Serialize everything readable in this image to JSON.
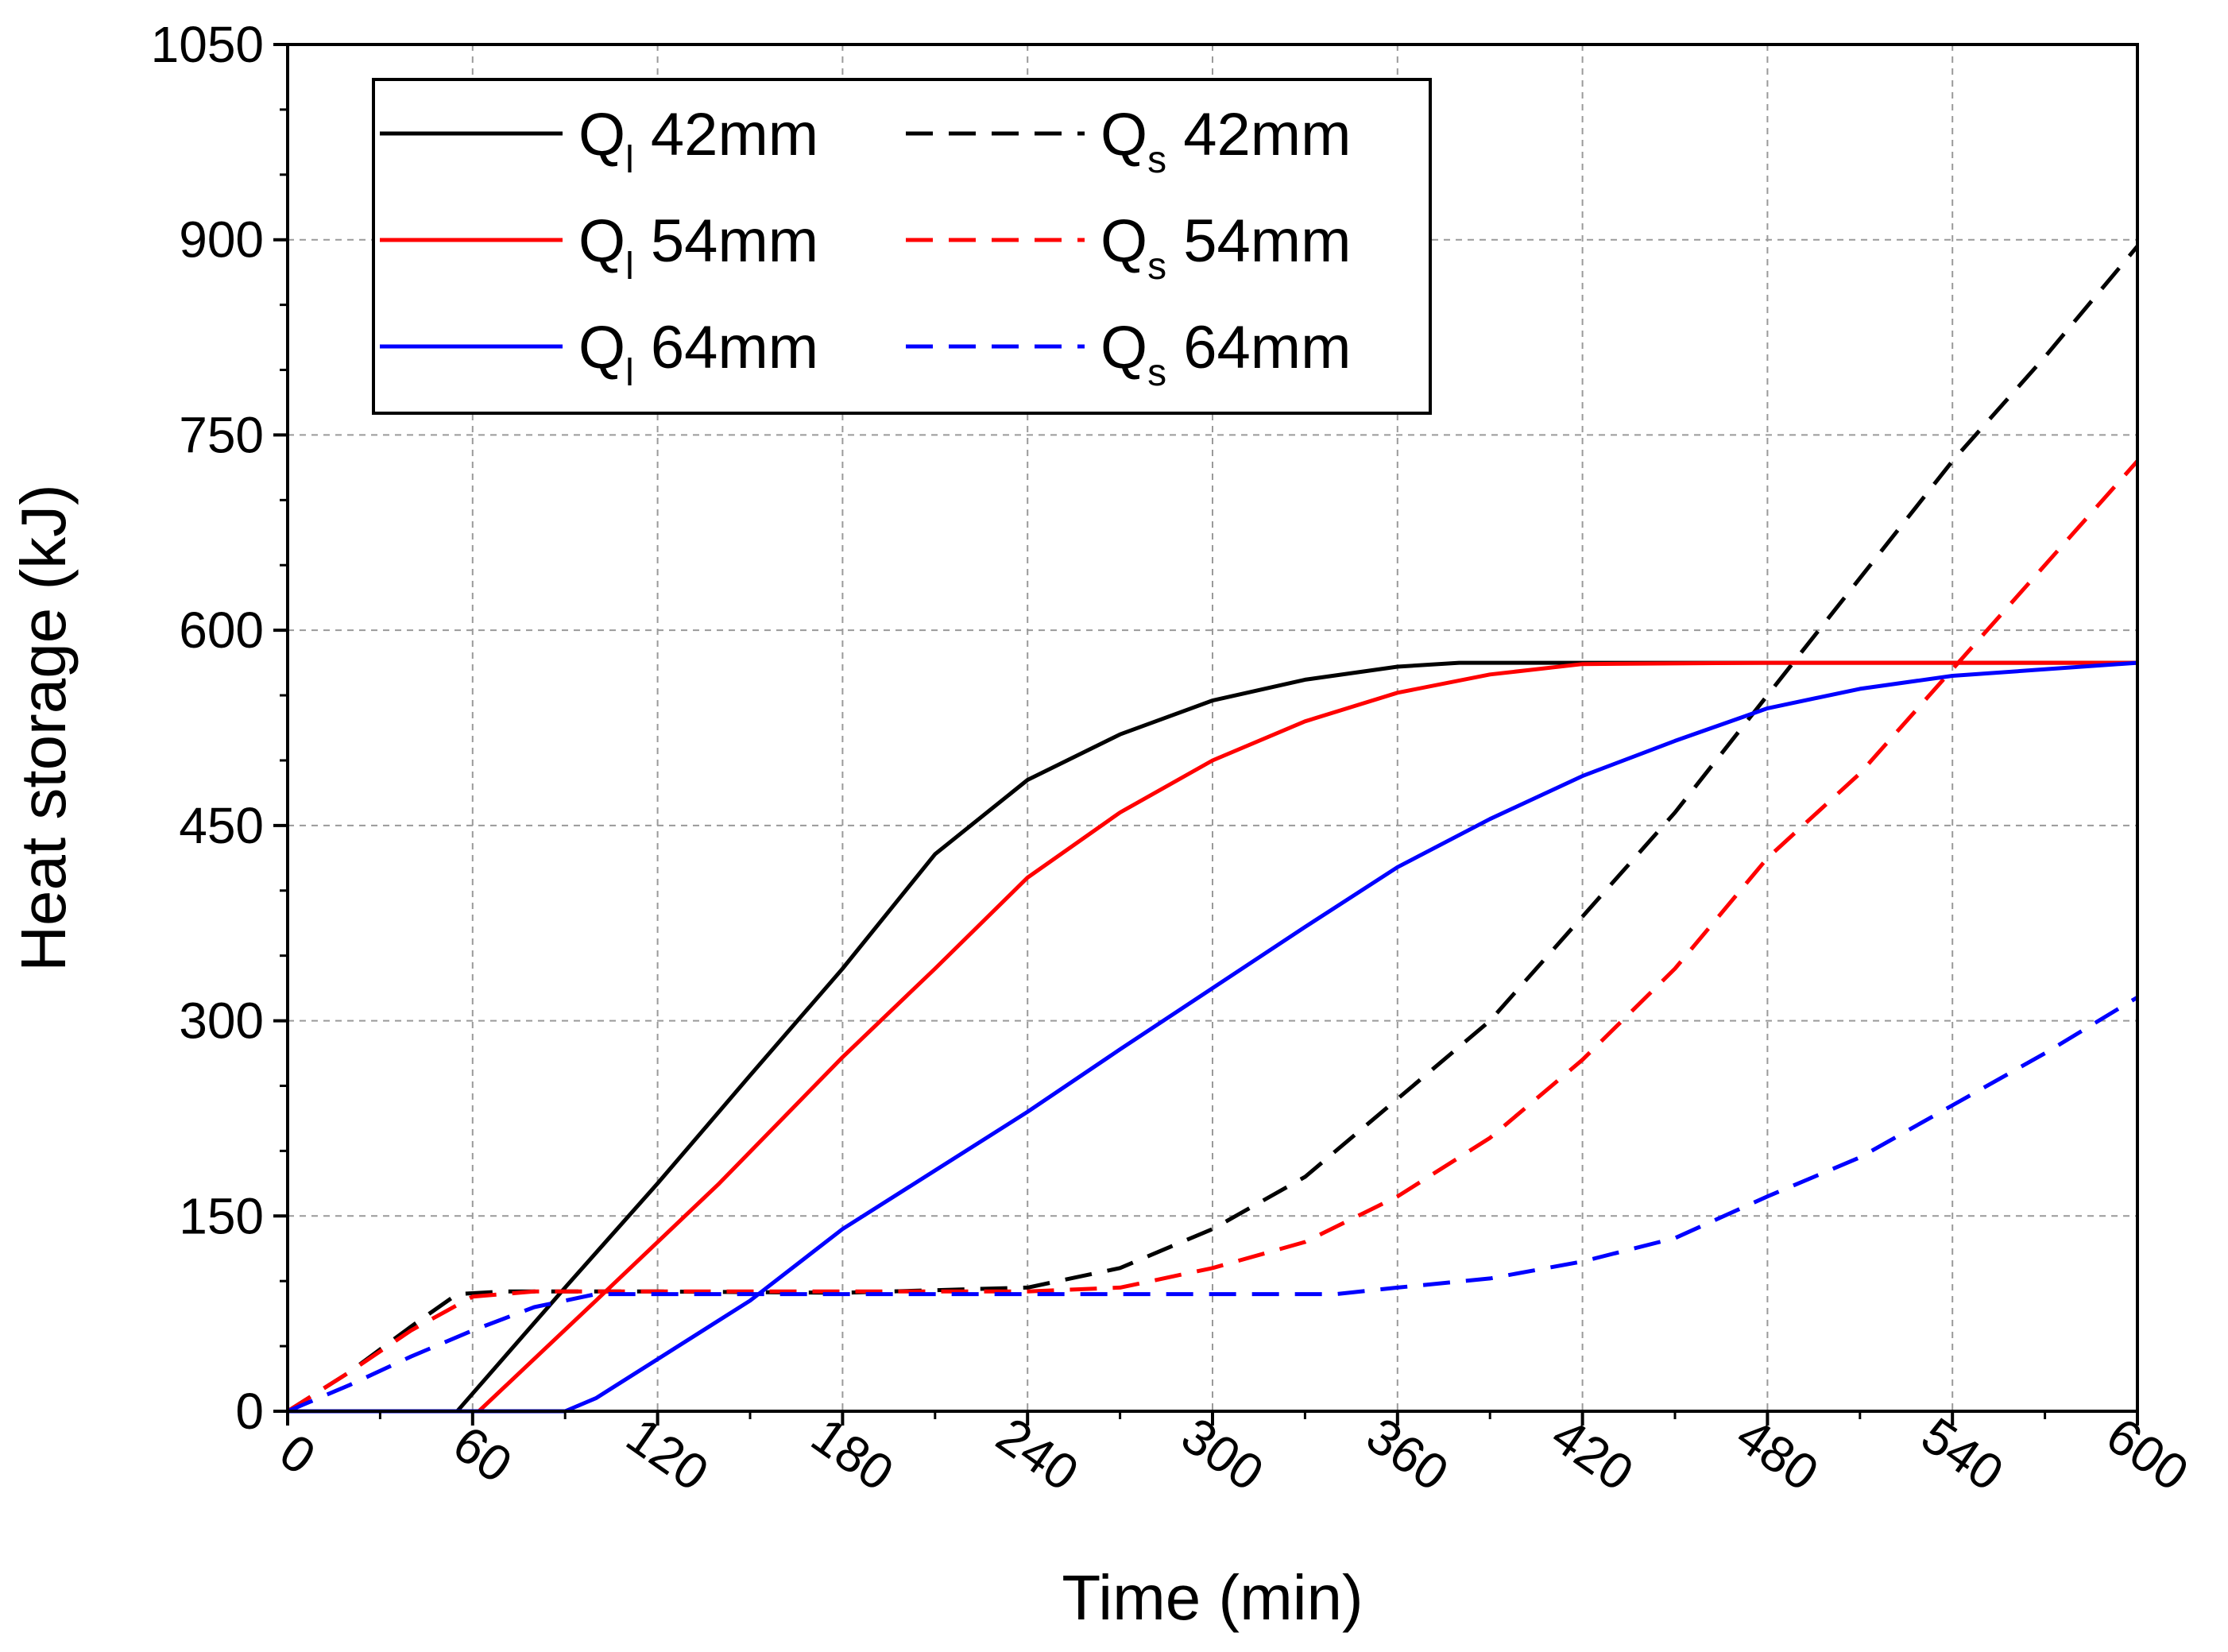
{
  "chart_data": {
    "type": "line",
    "title": "",
    "xlabel": "Time (min)",
    "ylabel": "Heat storage (kJ)",
    "xlim": [
      0,
      600
    ],
    "ylim": [
      0,
      1050
    ],
    "xticks": [
      0,
      60,
      120,
      180,
      240,
      300,
      360,
      420,
      480,
      540,
      600
    ],
    "yticks": [
      0,
      150,
      300,
      450,
      600,
      750,
      900,
      1050
    ],
    "grid": true,
    "legend_position": "top-left",
    "series": [
      {
        "name": "Q_l 42mm",
        "label_main": "Q",
        "label_sub": "l",
        "label_rest": " 42mm",
        "color": "#000000",
        "dash": "solid",
        "points": [
          [
            0,
            0
          ],
          [
            55,
            0
          ],
          [
            90,
            95
          ],
          [
            120,
            175
          ],
          [
            150,
            258
          ],
          [
            180,
            340
          ],
          [
            210,
            428
          ],
          [
            240,
            485
          ],
          [
            270,
            520
          ],
          [
            300,
            546
          ],
          [
            330,
            562
          ],
          [
            360,
            572
          ],
          [
            380,
            575
          ],
          [
            420,
            575
          ],
          [
            480,
            575
          ],
          [
            540,
            575
          ],
          [
            600,
            575
          ]
        ]
      },
      {
        "name": "Q_s 42mm",
        "label_main": "Q",
        "label_sub": "s",
        "label_rest": " 42mm",
        "color": "#000000",
        "dash": "dashed",
        "points": [
          [
            0,
            0
          ],
          [
            20,
            30
          ],
          [
            40,
            65
          ],
          [
            55,
            90
          ],
          [
            70,
            92
          ],
          [
            120,
            92
          ],
          [
            180,
            91
          ],
          [
            240,
            95
          ],
          [
            270,
            110
          ],
          [
            300,
            140
          ],
          [
            330,
            180
          ],
          [
            360,
            240
          ],
          [
            390,
            300
          ],
          [
            420,
            380
          ],
          [
            450,
            460
          ],
          [
            480,
            550
          ],
          [
            510,
            640
          ],
          [
            540,
            730
          ],
          [
            570,
            810
          ],
          [
            600,
            895
          ]
        ]
      },
      {
        "name": "Q_l 54mm",
        "label_main": "Q",
        "label_sub": "l",
        "label_rest": " 54mm",
        "color": "#ff0000",
        "dash": "solid",
        "points": [
          [
            0,
            0
          ],
          [
            62,
            0
          ],
          [
            100,
            85
          ],
          [
            140,
            175
          ],
          [
            180,
            272
          ],
          [
            210,
            340
          ],
          [
            240,
            410
          ],
          [
            270,
            460
          ],
          [
            300,
            500
          ],
          [
            330,
            530
          ],
          [
            360,
            552
          ],
          [
            390,
            566
          ],
          [
            420,
            574
          ],
          [
            480,
            575
          ],
          [
            540,
            575
          ],
          [
            600,
            575
          ]
        ]
      },
      {
        "name": "Q_s 54mm",
        "label_main": "Q",
        "label_sub": "s",
        "label_rest": " 54mm",
        "color": "#ff0000",
        "dash": "dashed",
        "points": [
          [
            0,
            0
          ],
          [
            20,
            30
          ],
          [
            40,
            62
          ],
          [
            60,
            88
          ],
          [
            80,
            92
          ],
          [
            150,
            92
          ],
          [
            240,
            92
          ],
          [
            270,
            95
          ],
          [
            300,
            110
          ],
          [
            330,
            130
          ],
          [
            360,
            165
          ],
          [
            390,
            210
          ],
          [
            420,
            270
          ],
          [
            450,
            340
          ],
          [
            480,
            425
          ],
          [
            510,
            490
          ],
          [
            540,
            570
          ],
          [
            570,
            650
          ],
          [
            600,
            730
          ]
        ]
      },
      {
        "name": "Q_l 64mm",
        "label_main": "Q",
        "label_sub": "l",
        "label_rest": " 64mm",
        "color": "#0000ff",
        "dash": "solid",
        "points": [
          [
            0,
            0
          ],
          [
            90,
            0
          ],
          [
            100,
            10
          ],
          [
            120,
            40
          ],
          [
            150,
            85
          ],
          [
            180,
            140
          ],
          [
            210,
            185
          ],
          [
            240,
            230
          ],
          [
            270,
            278
          ],
          [
            300,
            325
          ],
          [
            330,
            372
          ],
          [
            360,
            418
          ],
          [
            390,
            455
          ],
          [
            420,
            488
          ],
          [
            450,
            515
          ],
          [
            480,
            540
          ],
          [
            510,
            555
          ],
          [
            540,
            565
          ],
          [
            570,
            570
          ],
          [
            600,
            575
          ]
        ]
      },
      {
        "name": "Q_s 64mm",
        "label_main": "Q",
        "label_sub": "s",
        "label_rest": " 64mm",
        "color": "#0000ff",
        "dash": "dashed",
        "points": [
          [
            0,
            0
          ],
          [
            20,
            20
          ],
          [
            40,
            42
          ],
          [
            60,
            62
          ],
          [
            80,
            80
          ],
          [
            100,
            90
          ],
          [
            150,
            90
          ],
          [
            240,
            90
          ],
          [
            300,
            90
          ],
          [
            340,
            90
          ],
          [
            360,
            95
          ],
          [
            390,
            102
          ],
          [
            420,
            115
          ],
          [
            450,
            133
          ],
          [
            480,
            165
          ],
          [
            510,
            195
          ],
          [
            540,
            235
          ],
          [
            570,
            275
          ],
          [
            600,
            318
          ]
        ]
      }
    ]
  }
}
